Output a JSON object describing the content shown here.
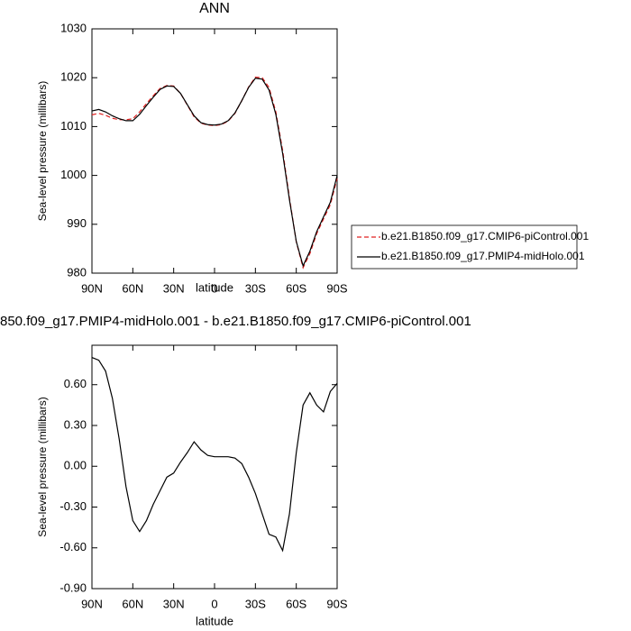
{
  "chart_data": [
    {
      "type": "line",
      "title": "ANN",
      "x_label": "latitude",
      "y_label": "Sea-level pressure (millibars)",
      "x": [
        90,
        85,
        80,
        75,
        70,
        65,
        60,
        55,
        50,
        45,
        40,
        35,
        30,
        25,
        20,
        15,
        10,
        5,
        0,
        -5,
        -10,
        -15,
        -20,
        -25,
        -30,
        -35,
        -40,
        -45,
        -50,
        -55,
        -60,
        -65,
        -70,
        -75,
        -80,
        -85,
        -90
      ],
      "xlim": [
        90,
        -90
      ],
      "xticks": [
        {
          "value": 90,
          "label": "90N"
        },
        {
          "value": 60,
          "label": "60N"
        },
        {
          "value": 30,
          "label": "30N"
        },
        0,
        {
          "value": -30,
          "label": "30S"
        },
        {
          "value": -60,
          "label": "60S"
        },
        {
          "value": -90,
          "label": "90S"
        }
      ],
      "ylim": [
        980,
        1030
      ],
      "yticks": [
        980,
        990,
        1000,
        1010,
        1020,
        1030
      ],
      "legend": "right",
      "series": [
        {
          "name": "b.e21.B1850.f09_g17.CMIP6-piControl.001",
          "color": "#e02020",
          "line_style": "dashed",
          "values": [
            1012.4,
            1012.7,
            1012.3,
            1011.7,
            1011.4,
            1011.4,
            1011.6,
            1013.0,
            1014.7,
            1016.3,
            1017.8,
            1018.4,
            1018.3,
            1016.8,
            1014.4,
            1012.0,
            1010.7,
            1010.3,
            1010.2,
            1010.4,
            1011.1,
            1012.7,
            1015.3,
            1018.1,
            1020.1,
            1020.0,
            1018.0,
            1013.0,
            1005.1,
            995.4,
            986.4,
            981.1,
            984.0,
            988.1,
            991.1,
            994.0,
            999.4
          ]
        },
        {
          "name": "b.e21.B1850.f09_g17.PMIP4-midHolo.001",
          "color": "#000000",
          "line_style": "solid",
          "values": [
            1013.2,
            1013.5,
            1013.0,
            1012.2,
            1011.6,
            1011.2,
            1011.2,
            1012.5,
            1014.3,
            1016.0,
            1017.6,
            1018.3,
            1018.2,
            1016.8,
            1014.5,
            1012.2,
            1010.8,
            1010.4,
            1010.3,
            1010.5,
            1011.2,
            1012.8,
            1015.3,
            1018.0,
            1019.9,
            1019.7,
            1017.5,
            1012.5,
            1004.5,
            995.0,
            986.5,
            981.5,
            984.5,
            988.5,
            991.5,
            994.5,
            1000.0
          ]
        }
      ]
    },
    {
      "type": "line",
      "title": "850.f09_g17.PMIP4-midHolo.001 - b.e21.B1850.f09_g17.CMIP6-piControl.001",
      "x_label": "latitude",
      "y_label": "Sea-level pressure (millibars)",
      "x": [
        90,
        85,
        80,
        75,
        70,
        65,
        60,
        55,
        50,
        45,
        40,
        35,
        30,
        25,
        20,
        15,
        10,
        5,
        0,
        -5,
        -10,
        -15,
        -20,
        -25,
        -30,
        -35,
        -40,
        -45,
        -50,
        -55,
        -60,
        -65,
        -70,
        -75,
        -80,
        -85,
        -90
      ],
      "xlim": [
        90,
        -90
      ],
      "xticks": [
        {
          "value": 90,
          "label": "90N"
        },
        {
          "value": 60,
          "label": "60N"
        },
        {
          "value": 30,
          "label": "30N"
        },
        0,
        {
          "value": -30,
          "label": "30S"
        },
        {
          "value": -60,
          "label": "60S"
        },
        {
          "value": -90,
          "label": "90S"
        }
      ],
      "ylim": [
        -0.9,
        0.89
      ],
      "yticks": [
        {
          "value": -0.9,
          "label": "-0.90"
        },
        {
          "value": -0.6,
          "label": "-0.60"
        },
        {
          "value": -0.3,
          "label": "-0.30"
        },
        {
          "value": 0,
          "label": "0.00"
        },
        {
          "value": 0.3,
          "label": "0.30"
        },
        {
          "value": 0.6,
          "label": "0.60"
        }
      ],
      "series": [
        {
          "color": "#000000",
          "line_style": "solid",
          "values": [
            0.8,
            0.78,
            0.7,
            0.5,
            0.2,
            -0.15,
            -0.4,
            -0.48,
            -0.4,
            -0.28,
            -0.18,
            -0.08,
            -0.05,
            0.03,
            0.1,
            0.18,
            0.12,
            0.08,
            0.07,
            0.07,
            0.07,
            0.06,
            0.02,
            -0.08,
            -0.2,
            -0.35,
            -0.5,
            -0.52,
            -0.62,
            -0.35,
            0.1,
            0.45,
            0.54,
            0.45,
            0.4,
            0.55,
            0.61
          ]
        }
      ]
    }
  ]
}
